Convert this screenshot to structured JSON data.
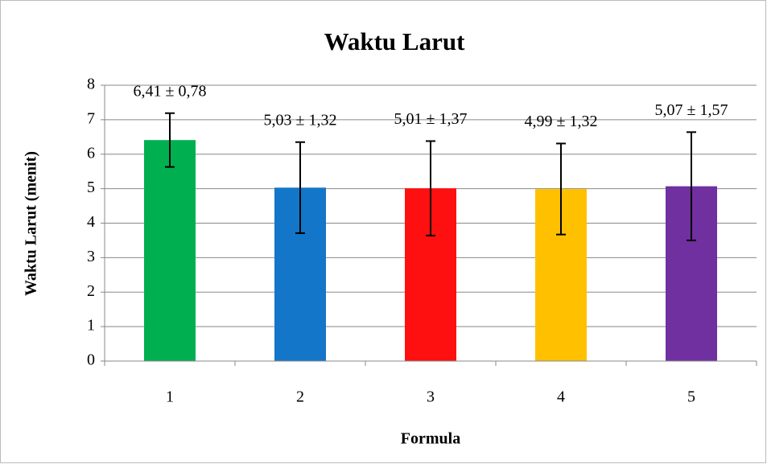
{
  "chart_data": {
    "type": "bar",
    "title": "Waktu Larut",
    "x_label": "Formula",
    "y_label": "Waktu Larut (menit)",
    "categories": [
      "1",
      "2",
      "3",
      "4",
      "5"
    ],
    "values": [
      6.41,
      5.03,
      5.01,
      4.99,
      5.07
    ],
    "errors": [
      0.78,
      1.32,
      1.37,
      1.32,
      1.57
    ],
    "value_labels": [
      "6,41 ± 0,78",
      "5,03 ± 1,32",
      "5,01 ± 1,37",
      "4,99 ± 1,32",
      "5,07 ± 1,57"
    ],
    "colors": [
      "#00b050",
      "#1376c8",
      "#ff1010",
      "#ffc000",
      "#7030a0"
    ],
    "ylim": [
      0,
      8
    ],
    "yticks": [
      0,
      1,
      2,
      3,
      4,
      5,
      6,
      7,
      8
    ],
    "grid": true
  }
}
